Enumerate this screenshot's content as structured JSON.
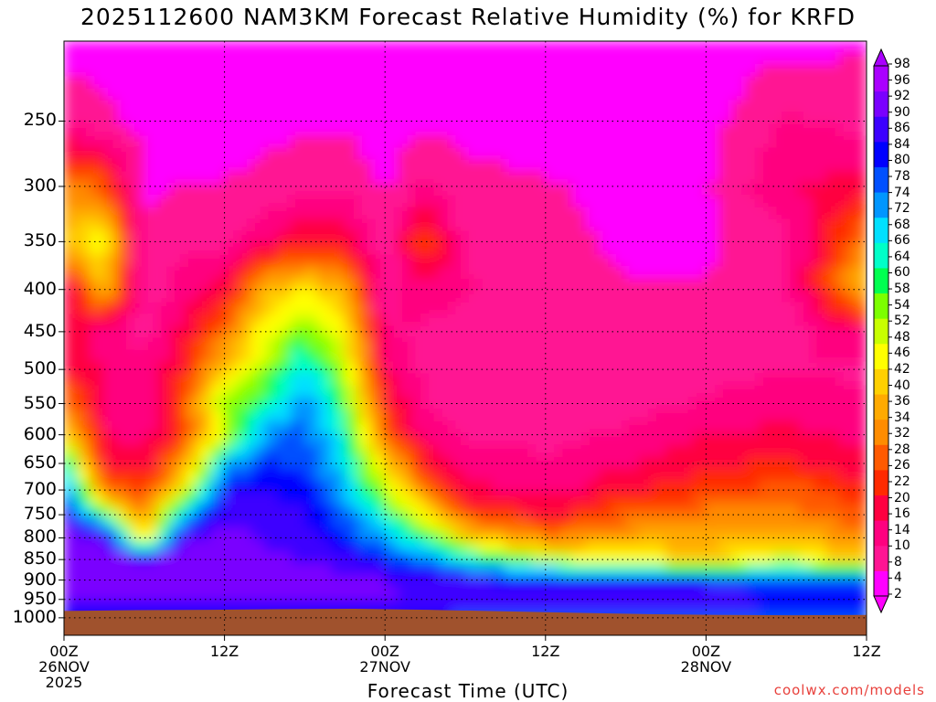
{
  "title": "2025112600 NAM3KM Forecast Relative Humidity (%) for KRFD",
  "credit": "coolwx.com/models",
  "colors": {
    "ground": "#a0522d",
    "credit": "#e8413c",
    "palette": [
      "#ff00ff",
      "#ff1493",
      "#ff007f",
      "#ff0040",
      "#ff2a00",
      "#ff5a00",
      "#ff8c00",
      "#ffaa00",
      "#ffd000",
      "#ffff00",
      "#c8ff00",
      "#7cff00",
      "#00ff50",
      "#00ffc8",
      "#00e0ff",
      "#0096ff",
      "#0050ff",
      "#0000ff",
      "#3c00ff",
      "#7a00ff",
      "#aa00ff"
    ]
  },
  "chart_data": {
    "type": "heatmap",
    "title": "2025112600 NAM3KM Forecast Relative Humidity (%) for KRFD",
    "xlabel": "Forecast Time (UTC)",
    "ylabel": "",
    "x_range_hours": [
      0,
      60
    ],
    "x_ticks": [
      {
        "hour": 0,
        "label": "00Z",
        "sub": [
          "26NOV",
          "2025"
        ]
      },
      {
        "hour": 12,
        "label": "12Z",
        "sub": []
      },
      {
        "hour": 24,
        "label": "00Z",
        "sub": [
          "27NOV"
        ]
      },
      {
        "hour": 36,
        "label": "12Z",
        "sub": []
      },
      {
        "hour": 48,
        "label": "00Z",
        "sub": [
          "28NOV"
        ]
      },
      {
        "hour": 60,
        "label": "12Z",
        "sub": []
      }
    ],
    "y_range_hpa": [
      1050,
      200
    ],
    "y_scale": "log-pressure",
    "y_ticks": [
      250,
      300,
      350,
      400,
      450,
      500,
      550,
      600,
      650,
      700,
      750,
      800,
      850,
      900,
      950,
      1000
    ],
    "colorbar": {
      "labels": [
        "98",
        "96",
        "92",
        "90",
        "86",
        "84",
        "80",
        "78",
        "74",
        "72",
        "68",
        "66",
        "64",
        "60",
        "58",
        "54",
        "52",
        "48",
        "46",
        "42",
        "40",
        "36",
        "34",
        "32",
        "28",
        "26",
        "22",
        "20",
        "16",
        "14",
        "10",
        "8",
        "4",
        "2"
      ]
    },
    "surface_pressure_hpa": [
      981,
      979,
      978,
      976,
      975,
      978,
      982,
      986,
      990,
      992,
      993,
      992
    ],
    "rh_profiles": [
      {
        "hour": 0,
        "p": [
          1000,
          950,
          900,
          850,
          800,
          750,
          700,
          650,
          600,
          550,
          500,
          450,
          400,
          350,
          300,
          250,
          200
        ],
        "rh": [
          85,
          92,
          95,
          94,
          93,
          90,
          78,
          66,
          44,
          30,
          18,
          20,
          12,
          40,
          30,
          8,
          3
        ]
      },
      {
        "hour": 3,
        "p": [
          1000,
          950,
          900,
          850,
          800,
          750,
          700,
          650,
          600,
          550,
          500,
          450,
          400,
          350,
          300,
          250,
          200
        ],
        "rh": [
          85,
          92,
          95,
          94,
          90,
          60,
          30,
          18,
          15,
          14,
          14,
          12,
          38,
          48,
          26,
          6,
          3
        ]
      },
      {
        "hour": 6,
        "p": [
          1000,
          950,
          900,
          850,
          800,
          750,
          700,
          650,
          600,
          550,
          500,
          450,
          400,
          350,
          300,
          250,
          200
        ],
        "rh": [
          85,
          92,
          94,
          92,
          40,
          30,
          22,
          16,
          12,
          10,
          10,
          8,
          6,
          5,
          4,
          3,
          2
        ]
      },
      {
        "hour": 9,
        "p": [
          1000,
          950,
          900,
          850,
          800,
          750,
          700,
          650,
          600,
          550,
          500,
          450,
          400,
          350,
          300,
          250,
          200
        ],
        "rh": [
          85,
          92,
          94,
          93,
          90,
          72,
          45,
          32,
          24,
          24,
          20,
          16,
          12,
          8,
          5,
          3,
          2
        ]
      },
      {
        "hour": 12,
        "p": [
          1000,
          950,
          900,
          850,
          800,
          750,
          700,
          650,
          600,
          550,
          500,
          450,
          400,
          350,
          300,
          250,
          200
        ],
        "rh": [
          85,
          92,
          94,
          93,
          92,
          90,
          84,
          70,
          48,
          54,
          40,
          28,
          16,
          8,
          5,
          3,
          2
        ]
      },
      {
        "hour": 15,
        "p": [
          1000,
          950,
          900,
          850,
          800,
          750,
          700,
          650,
          600,
          550,
          500,
          450,
          400,
          350,
          300,
          250,
          200
        ],
        "rh": [
          85,
          92,
          93,
          92,
          90,
          88,
          86,
          82,
          74,
          60,
          52,
          46,
          36,
          12,
          6,
          3,
          2
        ]
      },
      {
        "hour": 18,
        "p": [
          1000,
          950,
          900,
          850,
          800,
          750,
          700,
          650,
          600,
          550,
          500,
          450,
          400,
          350,
          300,
          250,
          200
        ],
        "rh": [
          85,
          92,
          93,
          90,
          88,
          86,
          84,
          80,
          78,
          76,
          70,
          54,
          42,
          20,
          8,
          4,
          2
        ]
      },
      {
        "hour": 21,
        "p": [
          1000,
          950,
          900,
          850,
          800,
          750,
          700,
          650,
          600,
          550,
          500,
          450,
          400,
          350,
          300,
          250,
          200
        ],
        "rh": [
          85,
          92,
          92,
          88,
          82,
          78,
          72,
          68,
          64,
          58,
          50,
          44,
          36,
          18,
          8,
          4,
          2
        ]
      },
      {
        "hour": 24,
        "p": [
          1000,
          950,
          900,
          850,
          800,
          750,
          700,
          650,
          600,
          550,
          500,
          450,
          400,
          350,
          300,
          250,
          200
        ],
        "rh": [
          84,
          92,
          90,
          82,
          72,
          62,
          50,
          40,
          28,
          20,
          14,
          10,
          8,
          6,
          4,
          3,
          2
        ]
      },
      {
        "hour": 27,
        "p": [
          1000,
          950,
          900,
          850,
          800,
          750,
          700,
          650,
          600,
          550,
          500,
          450,
          400,
          350,
          300,
          250,
          200
        ],
        "rh": [
          82,
          90,
          88,
          76,
          60,
          44,
          30,
          20,
          12,
          9,
          8,
          8,
          14,
          24,
          10,
          4,
          3
        ]
      },
      {
        "hour": 30,
        "p": [
          1000,
          950,
          900,
          850,
          800,
          750,
          700,
          650,
          600,
          550,
          500,
          450,
          400,
          350,
          300,
          250,
          200
        ],
        "rh": [
          80,
          90,
          86,
          66,
          40,
          26,
          16,
          12,
          9,
          8,
          7,
          6,
          10,
          8,
          6,
          3,
          2
        ]
      },
      {
        "hour": 36,
        "p": [
          1000,
          950,
          900,
          850,
          800,
          750,
          700,
          650,
          600,
          550,
          500,
          450,
          400,
          350,
          300,
          250,
          200
        ],
        "rh": [
          80,
          90,
          84,
          50,
          30,
          18,
          12,
          10,
          8,
          7,
          6,
          7,
          8,
          6,
          5,
          3,
          2
        ]
      },
      {
        "hour": 42,
        "p": [
          1000,
          950,
          900,
          850,
          800,
          750,
          700,
          650,
          600,
          550,
          500,
          450,
          400,
          350,
          300,
          250,
          200
        ],
        "rh": [
          80,
          90,
          82,
          46,
          34,
          26,
          18,
          14,
          10,
          8,
          6,
          5,
          5,
          4,
          4,
          3,
          2
        ]
      },
      {
        "hour": 48,
        "p": [
          1000,
          950,
          900,
          850,
          800,
          750,
          700,
          650,
          600,
          550,
          500,
          450,
          400,
          350,
          300,
          250,
          200
        ],
        "rh": [
          80,
          90,
          80,
          40,
          36,
          30,
          22,
          18,
          14,
          10,
          8,
          6,
          5,
          4,
          4,
          3,
          2
        ]
      },
      {
        "hour": 54,
        "p": [
          1000,
          950,
          900,
          850,
          800,
          750,
          700,
          650,
          600,
          550,
          500,
          450,
          400,
          350,
          300,
          250,
          200
        ],
        "rh": [
          80,
          88,
          76,
          50,
          38,
          30,
          26,
          20,
          16,
          12,
          9,
          8,
          7,
          8,
          14,
          10,
          3
        ]
      },
      {
        "hour": 60,
        "p": [
          1000,
          950,
          900,
          850,
          800,
          750,
          700,
          650,
          600,
          550,
          500,
          450,
          400,
          350,
          300,
          250,
          200
        ],
        "rh": [
          80,
          88,
          78,
          38,
          30,
          24,
          20,
          16,
          12,
          10,
          9,
          14,
          40,
          30,
          16,
          8,
          4
        ]
      }
    ]
  }
}
